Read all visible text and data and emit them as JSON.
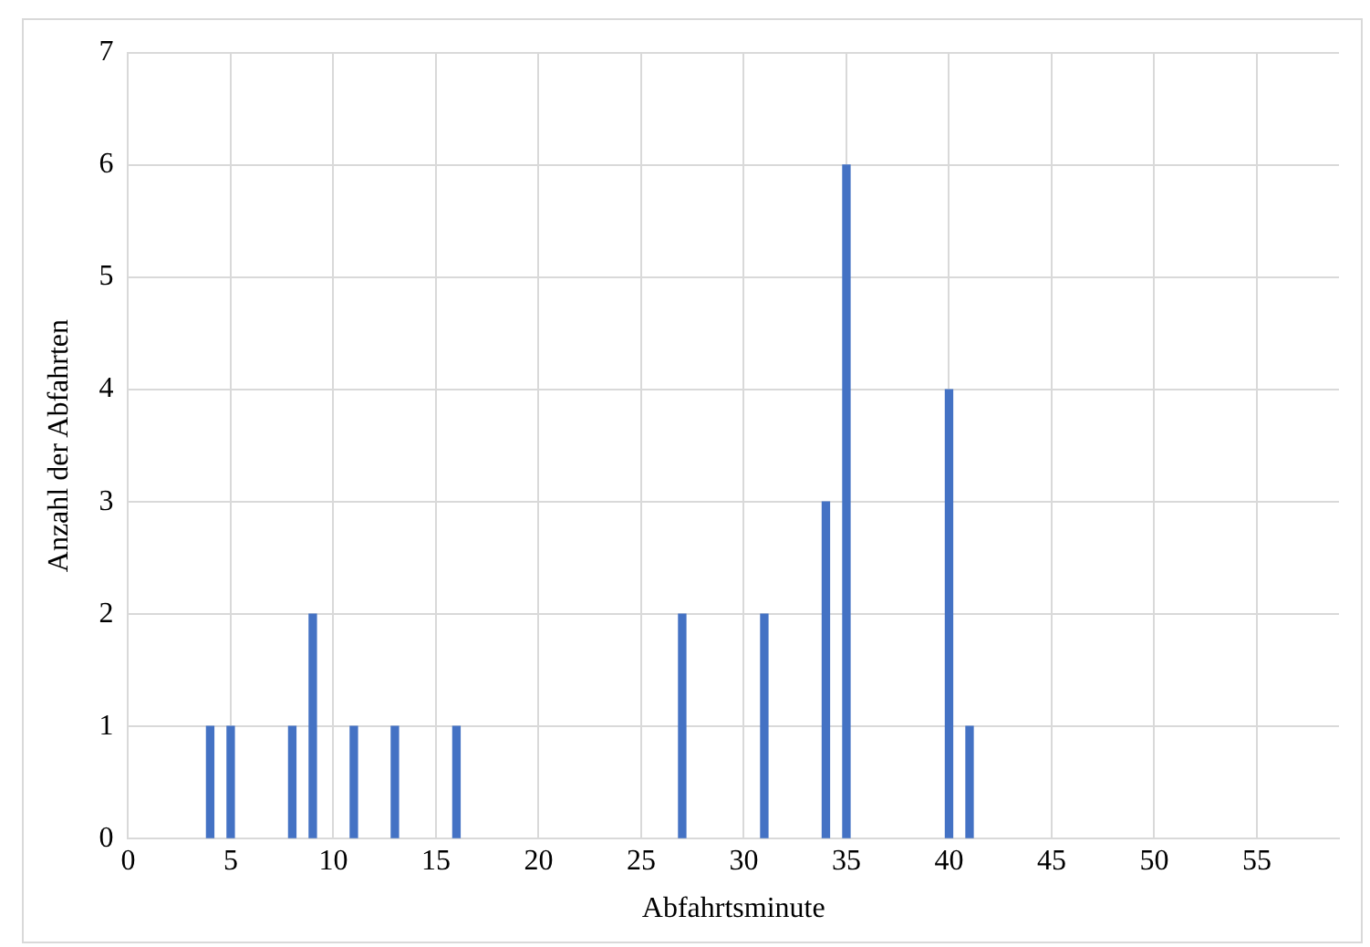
{
  "chart_data": {
    "type": "bar",
    "xlabel": "Abfahrtsminute",
    "ylabel": "Anzahl der Abfahrten",
    "x": [
      4,
      5,
      8,
      9,
      11,
      13,
      16,
      27,
      31,
      34,
      35,
      40,
      41
    ],
    "values": [
      1,
      1,
      1,
      2,
      1,
      1,
      1,
      2,
      2,
      3,
      6,
      4,
      1
    ],
    "color": "#4472c4",
    "xlim": [
      0,
      59
    ],
    "xticks": [
      0,
      5,
      10,
      15,
      20,
      25,
      30,
      35,
      40,
      45,
      50,
      55
    ],
    "ylim": [
      0,
      7
    ],
    "yticks": [
      0,
      1,
      2,
      3,
      4,
      5,
      6,
      7
    ],
    "grid": true,
    "legend": false
  }
}
